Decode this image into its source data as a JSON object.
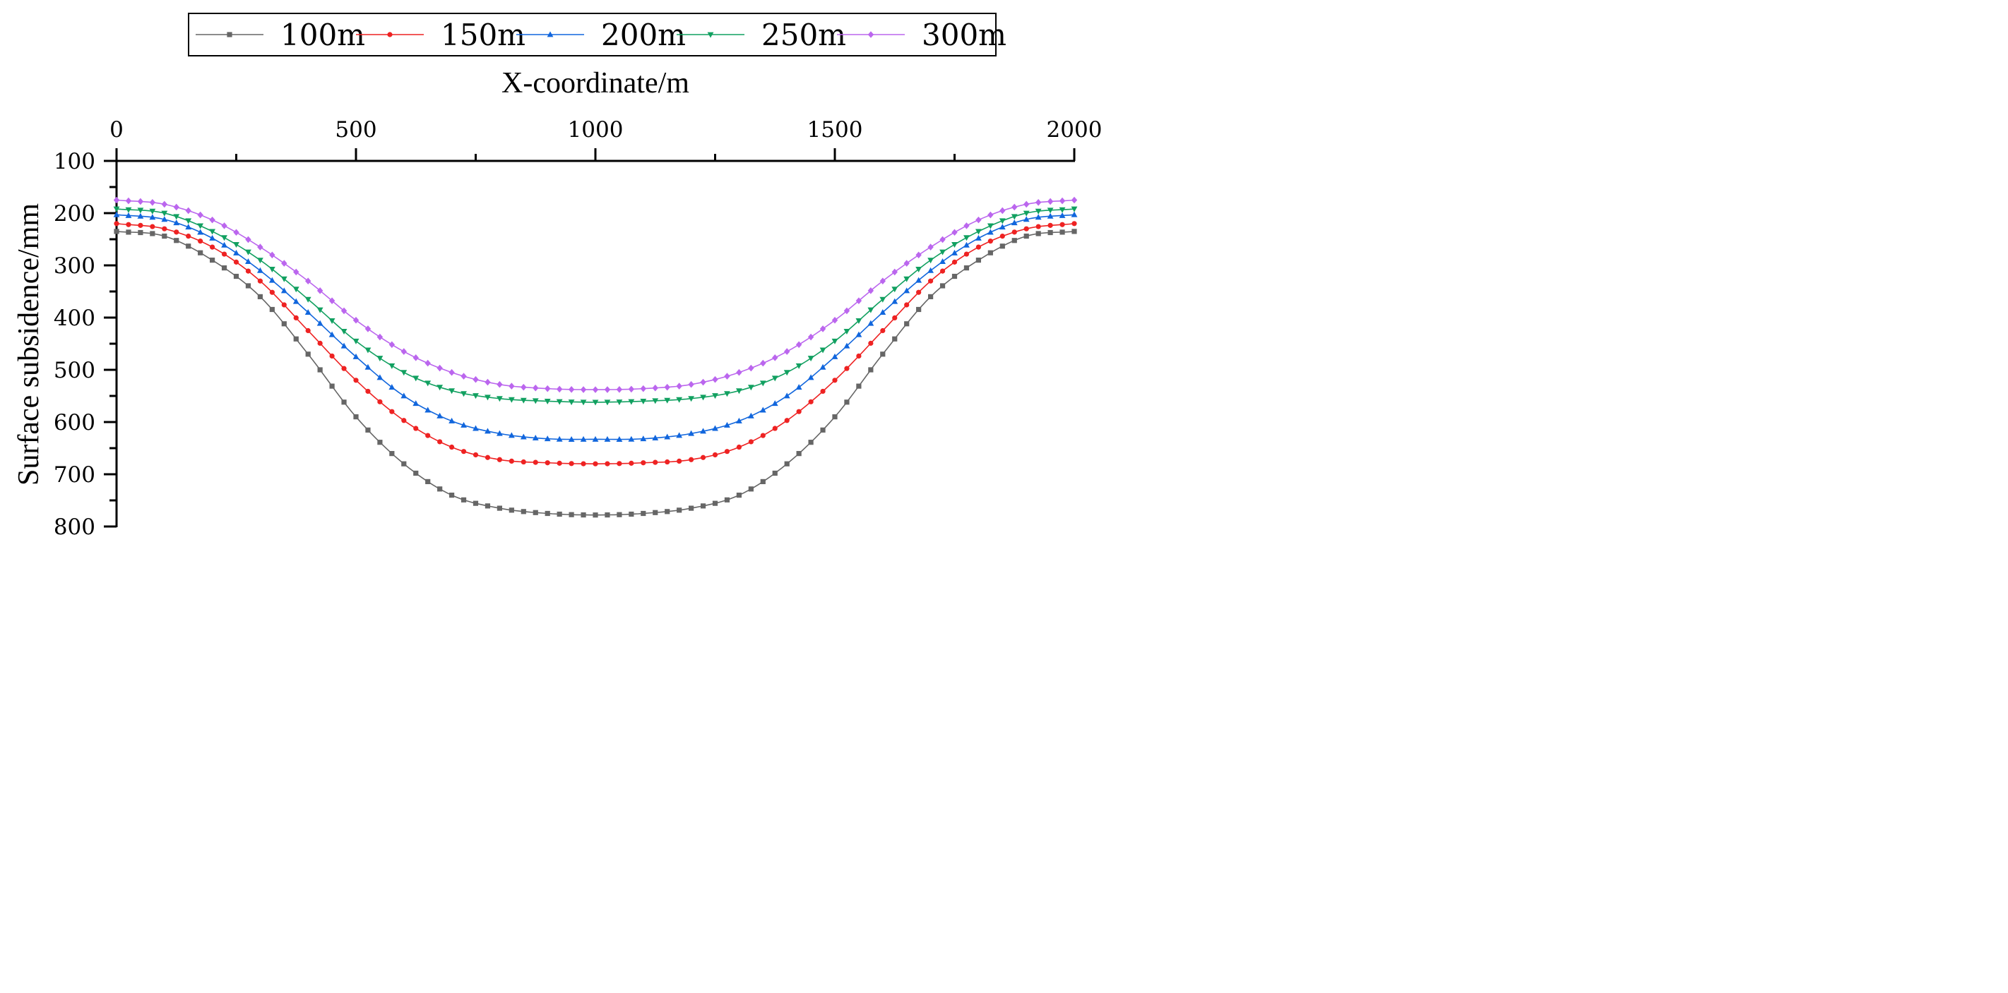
{
  "chart_data": {
    "type": "line",
    "xlabel": "X-coordinate/m",
    "ylabel": "Surface subsidence/mm",
    "xlim": [
      0,
      2000
    ],
    "ylim": [
      100,
      800
    ],
    "y_inverted": true,
    "x_axis_position": "top",
    "xticks": [
      0,
      500,
      1000,
      1500,
      2000
    ],
    "xtick_labels": [
      "0",
      "500",
      "1000",
      "1500",
      "2000"
    ],
    "yticks": [
      100,
      200,
      300,
      400,
      500,
      600,
      700,
      800
    ],
    "ytick_labels": [
      "100",
      "200",
      "300",
      "400",
      "500",
      "600",
      "700",
      "800"
    ],
    "legend_position": "top",
    "grid": false,
    "x": [
      0,
      100,
      200,
      300,
      400,
      500,
      600,
      700,
      800,
      900,
      1000,
      1100,
      1200,
      1300,
      1400,
      1500,
      1600,
      1700,
      1800,
      1900,
      2000
    ],
    "series": [
      {
        "name": "100m",
        "color": "#666666",
        "marker": "square",
        "values": [
          235,
          244,
          290,
          360,
          470,
          590,
          680,
          740,
          765,
          775,
          778,
          775,
          765,
          740,
          680,
          590,
          470,
          360,
          290,
          244,
          235
        ]
      },
      {
        "name": "150m",
        "color": "#ee2222",
        "marker": "circle",
        "values": [
          220,
          230,
          265,
          330,
          425,
          520,
          597,
          648,
          672,
          678,
          680,
          678,
          672,
          648,
          597,
          520,
          425,
          330,
          265,
          230,
          220
        ]
      },
      {
        "name": "200m",
        "color": "#1166dd",
        "marker": "triangle-up",
        "values": [
          203,
          212,
          248,
          310,
          390,
          475,
          550,
          598,
          622,
          632,
          633,
          632,
          622,
          598,
          550,
          475,
          390,
          310,
          248,
          212,
          203
        ]
      },
      {
        "name": "250m",
        "color": "#11a060",
        "marker": "triangle-down",
        "values": [
          192,
          200,
          235,
          290,
          365,
          445,
          505,
          540,
          555,
          560,
          562,
          560,
          555,
          540,
          505,
          445,
          365,
          290,
          235,
          200,
          192
        ]
      },
      {
        "name": "300m",
        "color": "#bb66ee",
        "marker": "diamond",
        "values": [
          175,
          183,
          213,
          265,
          330,
          405,
          465,
          505,
          528,
          536,
          538,
          536,
          528,
          505,
          465,
          405,
          330,
          265,
          213,
          183,
          175
        ]
      }
    ]
  }
}
